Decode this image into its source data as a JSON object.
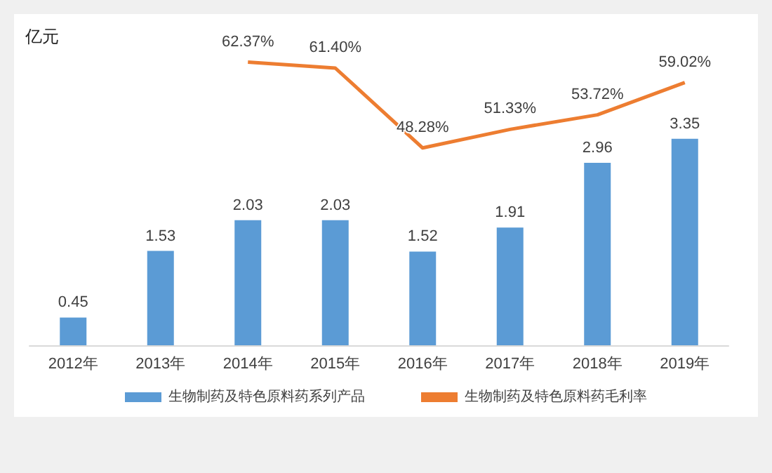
{
  "chart_data": {
    "type": "bar",
    "annotations": [
      "亿元"
    ],
    "categories": [
      "2012年",
      "2013年",
      "2014年",
      "2015年",
      "2016年",
      "2017年",
      "2018年",
      "2019年"
    ],
    "series": [
      {
        "name": "生物制药及特色原料药系列产品",
        "color": "#5b9bd5",
        "values": [
          0.45,
          1.53,
          2.03,
          2.03,
          1.52,
          1.91,
          2.96,
          3.35
        ],
        "value_labels": [
          "0.45",
          "1.53",
          "2.03",
          "2.03",
          "1.52",
          "1.91",
          "2.96",
          "3.35"
        ]
      },
      {
        "name": "生物制药及特色原料药毛利率",
        "type": "line",
        "axis": "y2",
        "color": "#ed7d31",
        "values": [
          null,
          null,
          62.37,
          61.4,
          48.28,
          51.33,
          53.72,
          59.02
        ],
        "value_labels": [
          null,
          null,
          "62.37%",
          "61.40%",
          "48.28%",
          "51.33%",
          "53.72%",
          "59.02%"
        ]
      }
    ],
    "tick_labels": "x",
    "grid": false,
    "legend": "bottom",
    "marker": "none"
  }
}
